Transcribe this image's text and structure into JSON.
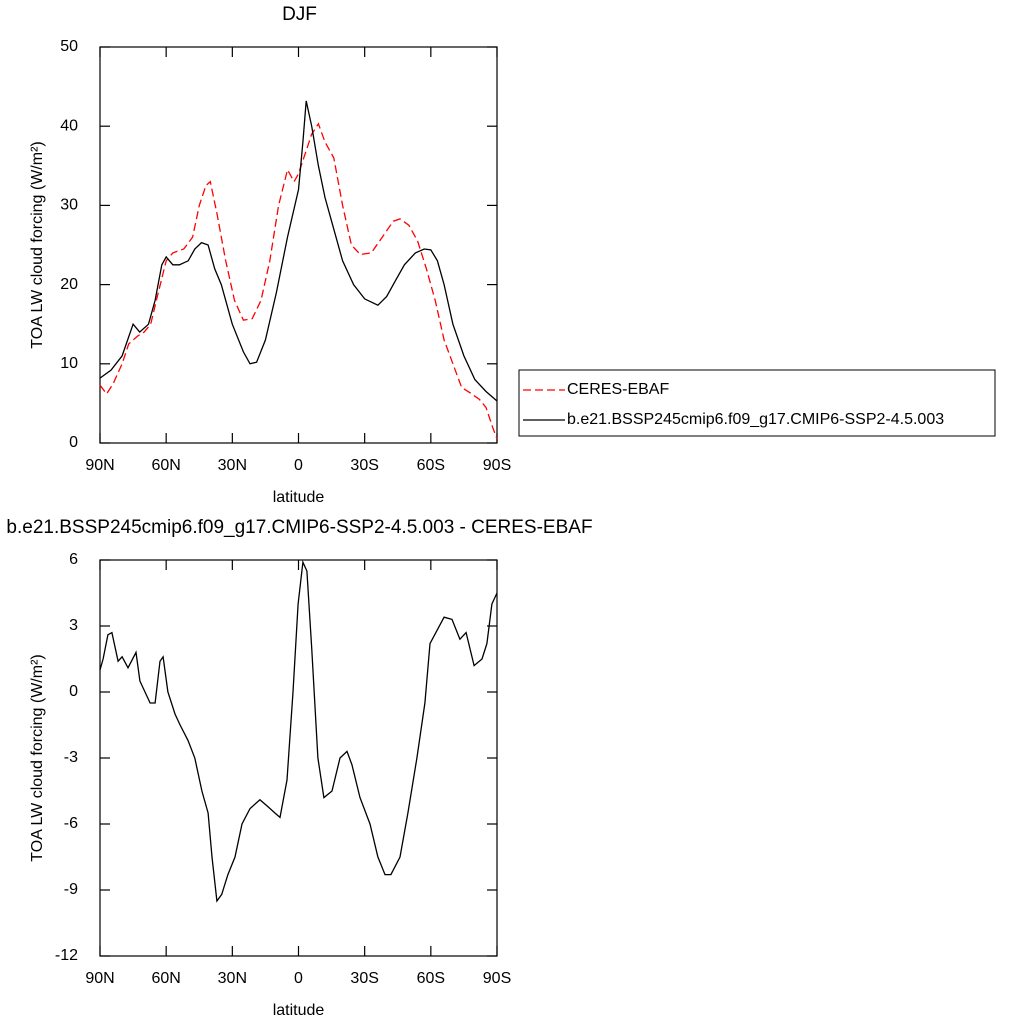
{
  "chart_data": [
    {
      "type": "line",
      "title": "DJF",
      "x_label": "latitude",
      "y_label": "TOA LW cloud forcing (W/m²)",
      "xlim": [
        90,
        -90
      ],
      "xticks": [
        {
          "value": 90,
          "label": "90N"
        },
        {
          "value": 60,
          "label": "60N"
        },
        {
          "value": 30,
          "label": "30N"
        },
        0,
        {
          "value": -30,
          "label": "30S"
        },
        {
          "value": -60,
          "label": "60S"
        },
        {
          "value": -90,
          "label": "90S"
        }
      ],
      "ylim": [
        0,
        50
      ],
      "yticks": [
        0,
        10,
        20,
        30,
        40,
        50
      ],
      "legend": "outside-right",
      "series": [
        {
          "name": "CERES-EBAF",
          "color": "#ff0000",
          "dash": true,
          "x": [
            90,
            87,
            84,
            80,
            77,
            73,
            70,
            67,
            64,
            60,
            57,
            52,
            48,
            45,
            42,
            40,
            37,
            33,
            29,
            25,
            21,
            17,
            13,
            9,
            5,
            2,
            0,
            -3,
            -6,
            -9,
            -12,
            -16,
            -20,
            -24,
            -28,
            -33,
            -38,
            -43,
            -46,
            -50,
            -54,
            -58,
            -62,
            -66,
            -70,
            -74,
            -78,
            -82,
            -85,
            -88,
            -90
          ],
          "values": [
            7.3,
            6.2,
            7.5,
            10,
            12.5,
            13.5,
            14,
            15,
            18.5,
            23,
            24,
            24.5,
            26,
            30,
            32.5,
            33,
            29,
            23,
            18,
            15.5,
            15.7,
            18,
            23,
            30,
            34.5,
            33,
            34,
            36.5,
            39,
            40.3,
            38,
            36,
            30,
            25,
            23.8,
            24,
            26,
            28,
            28.3,
            27.5,
            25.5,
            22,
            18,
            13,
            10,
            7,
            6.3,
            5.5,
            4.5,
            2,
            0.5
          ]
        },
        {
          "name": "b.e21.BSSP245cmip6.f09_g17.CMIP6-SSP2-4.5.003",
          "color": "#000000",
          "dash": false,
          "x": [
            90,
            85,
            80,
            75,
            72,
            68,
            65,
            62,
            60,
            57,
            54,
            50,
            47,
            44,
            41,
            38,
            35,
            30,
            25,
            22,
            19,
            15,
            10,
            5,
            0,
            -2,
            -3.5,
            -6,
            -9,
            -12,
            -16,
            -20,
            -25,
            -30,
            -36,
            -40,
            -44,
            -48,
            -53,
            -57,
            -60,
            -63,
            -66,
            -70,
            -75,
            -80,
            -85,
            -90
          ],
          "values": [
            8.2,
            9.2,
            11,
            15,
            14,
            15,
            18,
            22.5,
            23.5,
            22.5,
            22.5,
            23,
            24.5,
            25.3,
            25,
            22,
            20,
            15,
            11.5,
            10,
            10.2,
            13,
            19,
            26,
            32,
            38,
            43.2,
            40,
            35,
            31,
            27,
            23,
            20,
            18.2,
            17.4,
            18.5,
            20.5,
            22.5,
            24,
            24.5,
            24.4,
            23,
            20,
            15,
            11,
            8,
            6.5,
            5.3
          ]
        }
      ]
    },
    {
      "type": "line",
      "title": "b.e21.BSSP245cmip6.f09_g17.CMIP6-SSP2-4.5.003 - CERES-EBAF",
      "x_label": "latitude",
      "y_label": "TOA LW cloud forcing (W/m²)",
      "xlim": [
        90,
        -90
      ],
      "xticks": [
        {
          "value": 90,
          "label": "90N"
        },
        {
          "value": 60,
          "label": "60N"
        },
        {
          "value": 30,
          "label": "30N"
        },
        0,
        {
          "value": -30,
          "label": "30S"
        },
        {
          "value": -60,
          "label": "60S"
        },
        {
          "value": -90,
          "label": "90S"
        }
      ],
      "ylim": [
        -12,
        6
      ],
      "yticks": [
        -12,
        -9,
        -6,
        -3,
        0,
        3,
        6
      ],
      "series": [
        {
          "color": "#000000",
          "x": [
            90,
            88.6,
            86.4,
            84.6,
            81.8,
            80,
            77.3,
            73.7,
            71.9,
            67.3,
            65,
            62.8,
            61.4,
            59.2,
            56,
            53.7,
            50.1,
            47,
            43.8,
            41,
            39.2,
            37,
            34.8,
            32,
            28.8,
            25.6,
            22,
            17.5,
            14,
            10.7,
            8.4,
            5.2,
            2.5,
            0.2,
            -2,
            -3.8,
            -6,
            -8.8,
            -11.5,
            -15.2,
            -18.8,
            -22,
            -24.2,
            -27.9,
            -32.4,
            -36,
            -39.2,
            -41.9,
            -46,
            -49.6,
            -53.7,
            -57.3,
            -59.6,
            -62.8,
            -66,
            -69.6,
            -73.2,
            -76,
            -79.6,
            -83.2,
            -85.4,
            -87.7,
            -90
          ],
          "values": [
            1,
            1.5,
            2.6,
            2.7,
            1.4,
            1.6,
            1.1,
            1.8,
            0.5,
            -0.5,
            -0.5,
            1.4,
            1.6,
            0,
            -1,
            -1.5,
            -2.2,
            -3,
            -4.5,
            -5.5,
            -7.5,
            -9.5,
            -9.2,
            -8.3,
            -7.5,
            -6,
            -5.3,
            -4.9,
            -5.2,
            -5.5,
            -5.7,
            -4,
            0,
            4,
            5.9,
            5.5,
            2,
            -3,
            -4.8,
            -4.5,
            -3,
            -2.7,
            -3.3,
            -4.8,
            -6,
            -7.5,
            -8.3,
            -8.3,
            -7.5,
            -5.5,
            -3,
            -0.5,
            2.2,
            2.8,
            3.4,
            3.3,
            2.4,
            2.7,
            1.2,
            1.5,
            2.2,
            4,
            4.5
          ]
        }
      ]
    }
  ]
}
